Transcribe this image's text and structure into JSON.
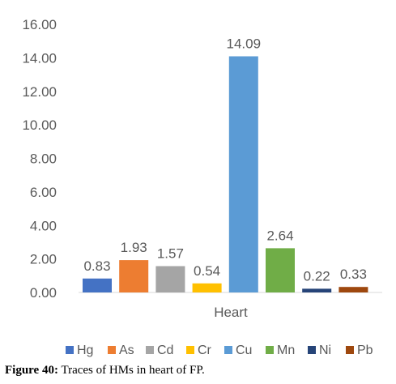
{
  "caption": {
    "label": "Figure 40:",
    "text": " Traces of HMs in heart of FP."
  },
  "chart_data": {
    "type": "bar",
    "title": "",
    "xlabel": "",
    "ylabel": "",
    "categories": [
      "Heart"
    ],
    "ylim": [
      0,
      16
    ],
    "yticks": [
      "0.00",
      "2.00",
      "4.00",
      "6.00",
      "8.00",
      "10.00",
      "12.00",
      "14.00",
      "16.00"
    ],
    "grid": false,
    "legend": "bottom",
    "series": [
      {
        "name": "Hg",
        "values": [
          0.83
        ],
        "label": "0.83",
        "color": "#4472C4"
      },
      {
        "name": "As",
        "values": [
          1.93
        ],
        "label": "1.93",
        "color": "#ED7D31"
      },
      {
        "name": "Cd",
        "values": [
          1.57
        ],
        "label": "1.57",
        "color": "#A5A5A5"
      },
      {
        "name": "Cr",
        "values": [
          0.54
        ],
        "label": "0.54",
        "color": "#FFC000"
      },
      {
        "name": "Cu",
        "values": [
          14.09
        ],
        "label": "14.09",
        "color": "#5B9BD5"
      },
      {
        "name": "Mn",
        "values": [
          2.64
        ],
        "label": "2.64",
        "color": "#70AD47"
      },
      {
        "name": "Ni",
        "values": [
          0.22
        ],
        "label": "0.22",
        "color": "#264478"
      },
      {
        "name": "Pb",
        "values": [
          0.33
        ],
        "label": "0.33",
        "color": "#9E480E"
      }
    ]
  }
}
